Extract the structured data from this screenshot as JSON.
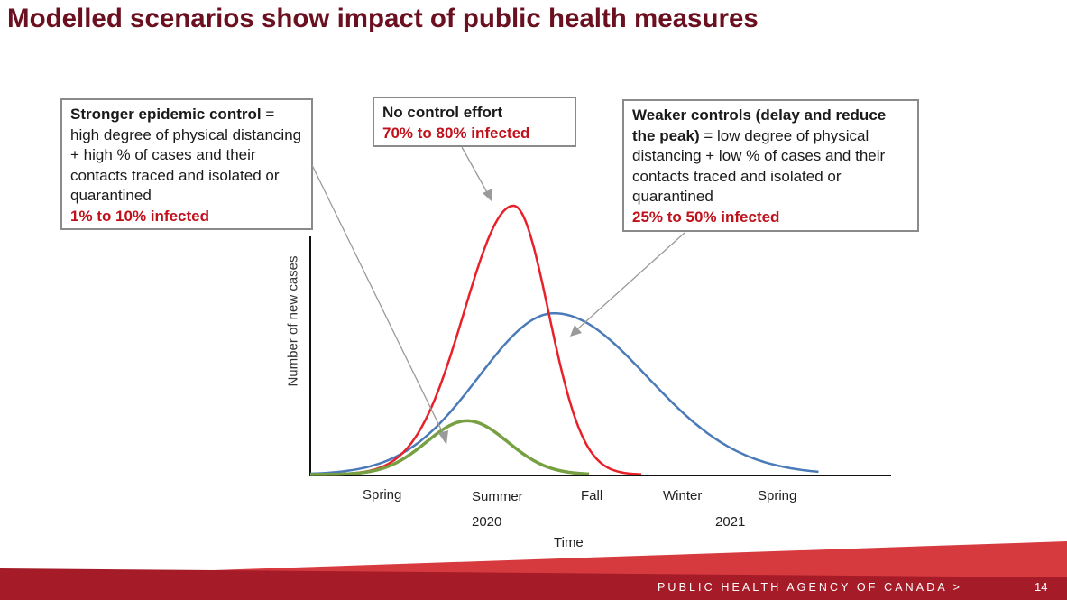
{
  "slide": {
    "title": "Modelled scenarios show impact of public health measures",
    "footer": "PUBLIC HEALTH AGENCY OF CANADA  >",
    "page_number": "14"
  },
  "callouts": {
    "strong": {
      "heading": "Stronger epidemic control",
      "text": " = high degree of physical distancing + high % of cases and their contacts traced and isolated or quarantined",
      "result": "1% to 10% infected"
    },
    "none": {
      "heading": "No control effort",
      "result": "70% to 80% infected"
    },
    "weak": {
      "heading": "Weaker controls (delay and reduce the peak)",
      "text": " = low degree of physical distancing + low % of cases and their contacts traced and isolated or quarantined",
      "result": "25% to 50% infected"
    }
  },
  "colors": {
    "no_control": "#e8202a",
    "weaker": "#4a7ab8",
    "stronger": "#77a043",
    "title": "#6b1020",
    "footer_band": "#b3202c"
  },
  "chart_data": {
    "type": "line",
    "title": "",
    "xlabel": "Time",
    "ylabel": "Number of new cases",
    "x_tick_labels": [
      "Spring",
      "Summer",
      "Fall",
      "Winter",
      "Spring"
    ],
    "x_year_labels": [
      "2020",
      "2021"
    ],
    "grid": false,
    "y_ticks_shown": false,
    "series": [
      {
        "key": "none",
        "color": "#e8202a",
        "peak": 1.0,
        "peak_position": 0.35,
        "description": "No control effort"
      },
      {
        "key": "weak",
        "color": "#4a7ab8",
        "peak": 0.6,
        "peak_position": 0.42,
        "description": "Weaker controls"
      },
      {
        "key": "strong",
        "color": "#77a043",
        "peak": 0.2,
        "peak_position": 0.27,
        "description": "Stronger epidemic control"
      }
    ]
  }
}
